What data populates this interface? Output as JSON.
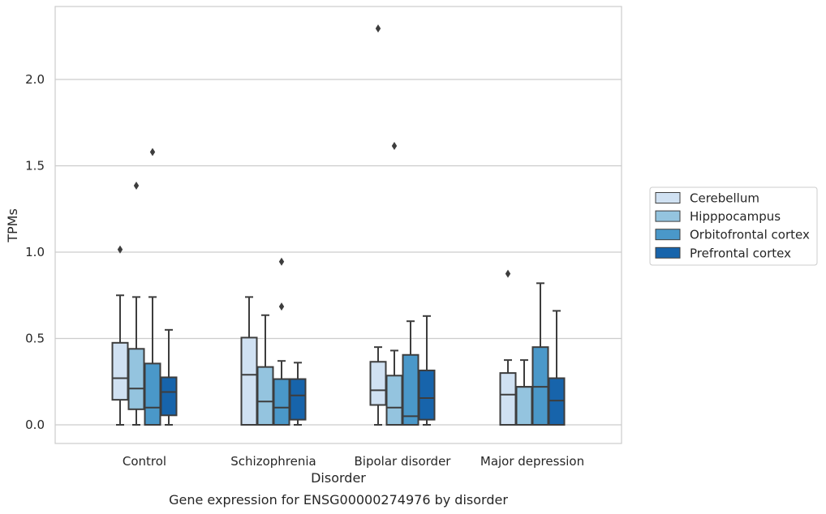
{
  "chart_data": {
    "type": "box",
    "title": "Gene expression for ENSG00000274976 by disorder",
    "xlabel": "Disorder",
    "ylabel": "TPMs",
    "ylim": [
      -0.11,
      2.4
    ],
    "yticks": [
      "0.0",
      "0.5",
      "1.0",
      "1.5",
      "2.0"
    ],
    "grid": "horizontal",
    "legend_position": "right",
    "categories": [
      "Control",
      "Schizophrenia",
      "Bipolar disorder",
      "Major depression"
    ],
    "series": [
      {
        "name": "Cerebellum",
        "color": "#d0e1f2",
        "boxes": [
          {
            "whisker_low": 0.0,
            "q1": 0.145,
            "median": 0.27,
            "q3": 0.475,
            "whisker_high": 0.75,
            "outliers": [
              1.015
            ]
          },
          {
            "whisker_low": 0.0,
            "q1": 0.0,
            "median": 0.29,
            "q3": 0.505,
            "whisker_high": 0.74,
            "outliers": []
          },
          {
            "whisker_low": 0.0,
            "q1": 0.115,
            "median": 0.2,
            "q3": 0.365,
            "whisker_high": 0.45,
            "outliers": [
              2.295
            ]
          },
          {
            "whisker_low": 0.0,
            "q1": 0.0,
            "median": 0.175,
            "q3": 0.3,
            "whisker_high": 0.375,
            "outliers": [
              0.875
            ]
          }
        ]
      },
      {
        "name": "Hipppocampus",
        "color": "#94c4df",
        "boxes": [
          {
            "whisker_low": 0.0,
            "q1": 0.09,
            "median": 0.21,
            "q3": 0.44,
            "whisker_high": 0.74,
            "outliers": [
              1.385
            ]
          },
          {
            "whisker_low": 0.0,
            "q1": 0.0,
            "median": 0.135,
            "q3": 0.335,
            "whisker_high": 0.635,
            "outliers": []
          },
          {
            "whisker_low": 0.0,
            "q1": 0.0,
            "median": 0.1,
            "q3": 0.285,
            "whisker_high": 0.43,
            "outliers": [
              1.615
            ]
          },
          {
            "whisker_low": 0.0,
            "q1": 0.0,
            "median": 0.22,
            "q3": 0.22,
            "whisker_high": 0.375,
            "outliers": []
          }
        ]
      },
      {
        "name": "Orbitofrontal cortex",
        "color": "#4a98c9",
        "boxes": [
          {
            "whisker_low": 0.0,
            "q1": 0.0,
            "median": 0.1,
            "q3": 0.355,
            "whisker_high": 0.74,
            "outliers": [
              1.58
            ]
          },
          {
            "whisker_low": 0.0,
            "q1": 0.0,
            "median": 0.1,
            "q3": 0.265,
            "whisker_high": 0.37,
            "outliers": [
              0.685,
              0.945
            ]
          },
          {
            "whisker_low": 0.0,
            "q1": 0.0,
            "median": 0.05,
            "q3": 0.405,
            "whisker_high": 0.6,
            "outliers": []
          },
          {
            "whisker_low": 0.0,
            "q1": 0.0,
            "median": 0.22,
            "q3": 0.45,
            "whisker_high": 0.82,
            "outliers": []
          }
        ]
      },
      {
        "name": "Prefrontal cortex",
        "color": "#1764ab",
        "boxes": [
          {
            "whisker_low": 0.0,
            "q1": 0.055,
            "median": 0.19,
            "q3": 0.275,
            "whisker_high": 0.55,
            "outliers": []
          },
          {
            "whisker_low": 0.0,
            "q1": 0.03,
            "median": 0.17,
            "q3": 0.265,
            "whisker_high": 0.36,
            "outliers": []
          },
          {
            "whisker_low": 0.0,
            "q1": 0.03,
            "median": 0.155,
            "q3": 0.315,
            "whisker_high": 0.63,
            "outliers": []
          },
          {
            "whisker_low": 0.0,
            "q1": 0.0,
            "median": 0.14,
            "q3": 0.27,
            "whisker_high": 0.66,
            "outliers": []
          }
        ]
      }
    ]
  }
}
